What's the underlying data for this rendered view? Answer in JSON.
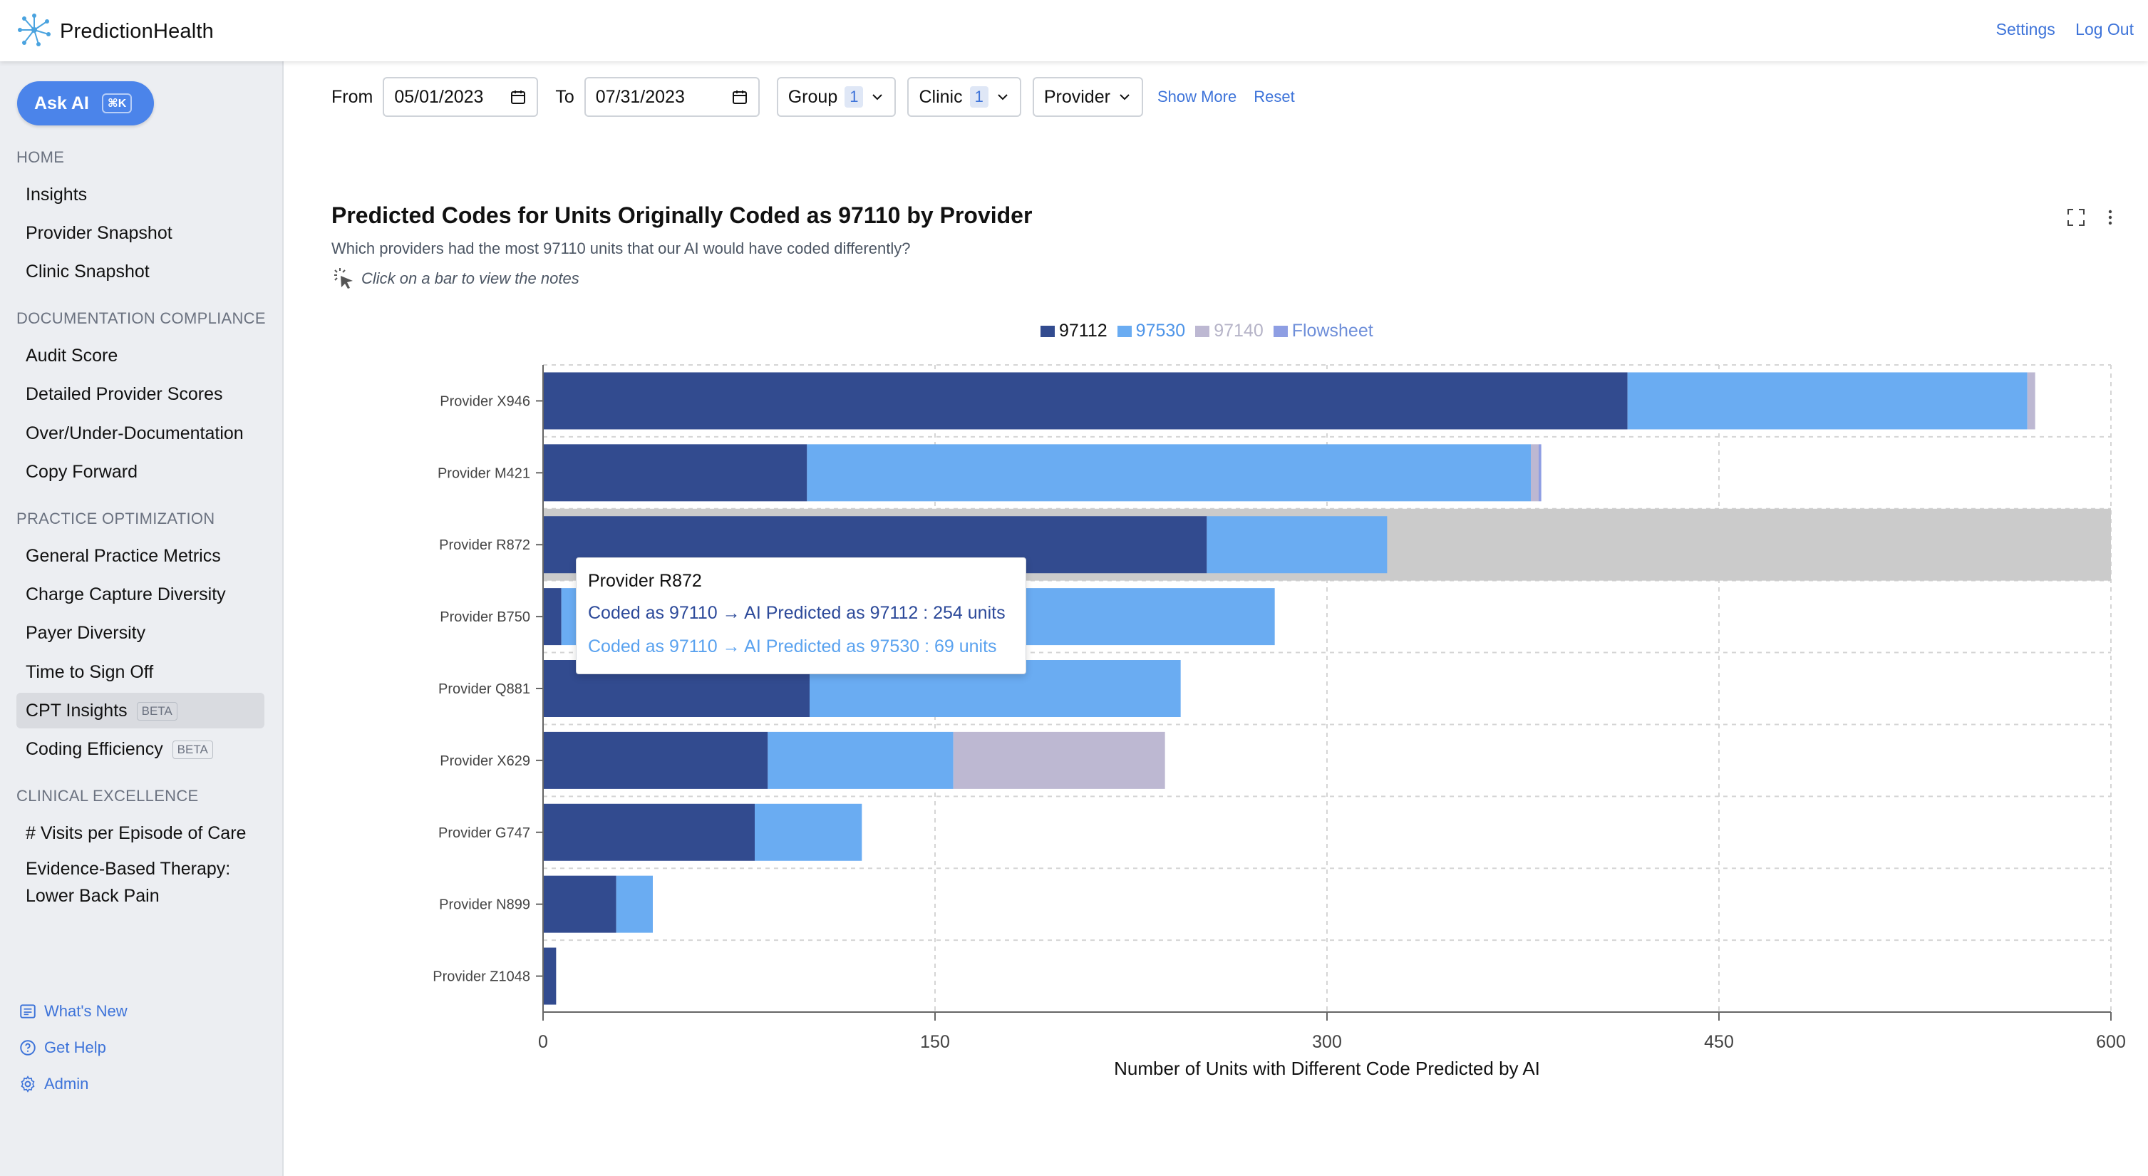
{
  "header": {
    "brand": "PredictionHealth",
    "links": [
      "Settings",
      "Log Out"
    ]
  },
  "sidebar": {
    "ask_ai": "Ask AI",
    "ask_ai_shortcut": "⌘K",
    "sections": [
      {
        "title": "HOME",
        "items": [
          "Insights",
          "Provider Snapshot",
          "Clinic Snapshot"
        ]
      },
      {
        "title": "DOCUMENTATION COMPLIANCE",
        "items": [
          "Audit Score",
          "Detailed Provider Scores",
          "Over/Under-Documentation",
          "Copy Forward"
        ]
      },
      {
        "title": "PRACTICE OPTIMIZATION",
        "items": [
          "General Practice Metrics",
          "Charge Capture Diversity",
          "Payer Diversity",
          "Time to Sign Off",
          "CPT Insights",
          "Coding Efficiency"
        ]
      },
      {
        "title": "CLINICAL EXCELLENCE",
        "items": [
          "# Visits per Episode of Care",
          "Evidence-Based Therapy:",
          "Lower Back Pain"
        ]
      }
    ],
    "beta_label": "BETA",
    "active_item": "CPT Insights",
    "footer": [
      "What's New",
      "Get Help",
      "Admin"
    ]
  },
  "filters": {
    "from_label": "From",
    "from_value": "05/01/2023",
    "to_label": "To",
    "to_value": "07/31/2023",
    "group_label": "Group",
    "group_count": "1",
    "clinic_label": "Clinic",
    "clinic_count": "1",
    "provider_label": "Provider",
    "show_more": "Show More",
    "reset": "Reset"
  },
  "chart_header": {
    "title": "Predicted Codes for Units Originally Coded as 97110 by Provider",
    "subtitle": "Which providers had the most 97110 units that our AI would have coded differently?",
    "hint": "Click on a bar to view the notes"
  },
  "tooltip": {
    "title": "Provider R872",
    "line1": "Coded as 97110 → AI Predicted as 97112 : 254 units",
    "line2": "Coded as 97110 → AI Predicted as 97530 : 69 units"
  },
  "colors": {
    "s97112": "#324b8f",
    "s97530": "#6aacf2",
    "s97140": "#bdb8d2",
    "flowsheet": "#8e9ee3",
    "highlight": "#cbcbcb",
    "link": "#3d73d9",
    "tt_line1": "#2d4a9a",
    "tt_line2": "#5aa2ef"
  },
  "chart_data": {
    "type": "bar",
    "orientation": "horizontal",
    "stacked": true,
    "categories": [
      "Provider X946",
      "Provider M421",
      "Provider R872",
      "Provider B750",
      "Provider Q881",
      "Provider X629",
      "Provider G747",
      "Provider N899",
      "Provider Z1048"
    ],
    "series": [
      {
        "name": "97112",
        "values": [
          415,
          101,
          254,
          7,
          102,
          86,
          81,
          28,
          5
        ]
      },
      {
        "name": "97530",
        "values": [
          153,
          277,
          69,
          273,
          142,
          71,
          41,
          14,
          0
        ]
      },
      {
        "name": "97140",
        "values": [
          3,
          3,
          0,
          0,
          0,
          81,
          0,
          0,
          0
        ]
      },
      {
        "name": "Flowsheet",
        "values": [
          0,
          1,
          0,
          0,
          0,
          0,
          0,
          0,
          0
        ]
      }
    ],
    "legend_inactive": [
      "97140",
      "Flowsheet"
    ],
    "highlighted_category": "Provider R872",
    "xlabel": "Number of Units with Different Code Predicted by AI",
    "xlim": [
      0,
      600
    ],
    "xticks": [
      "0",
      "150",
      "300",
      "450",
      "600"
    ],
    "grid": true,
    "legend_position": "top-center"
  }
}
